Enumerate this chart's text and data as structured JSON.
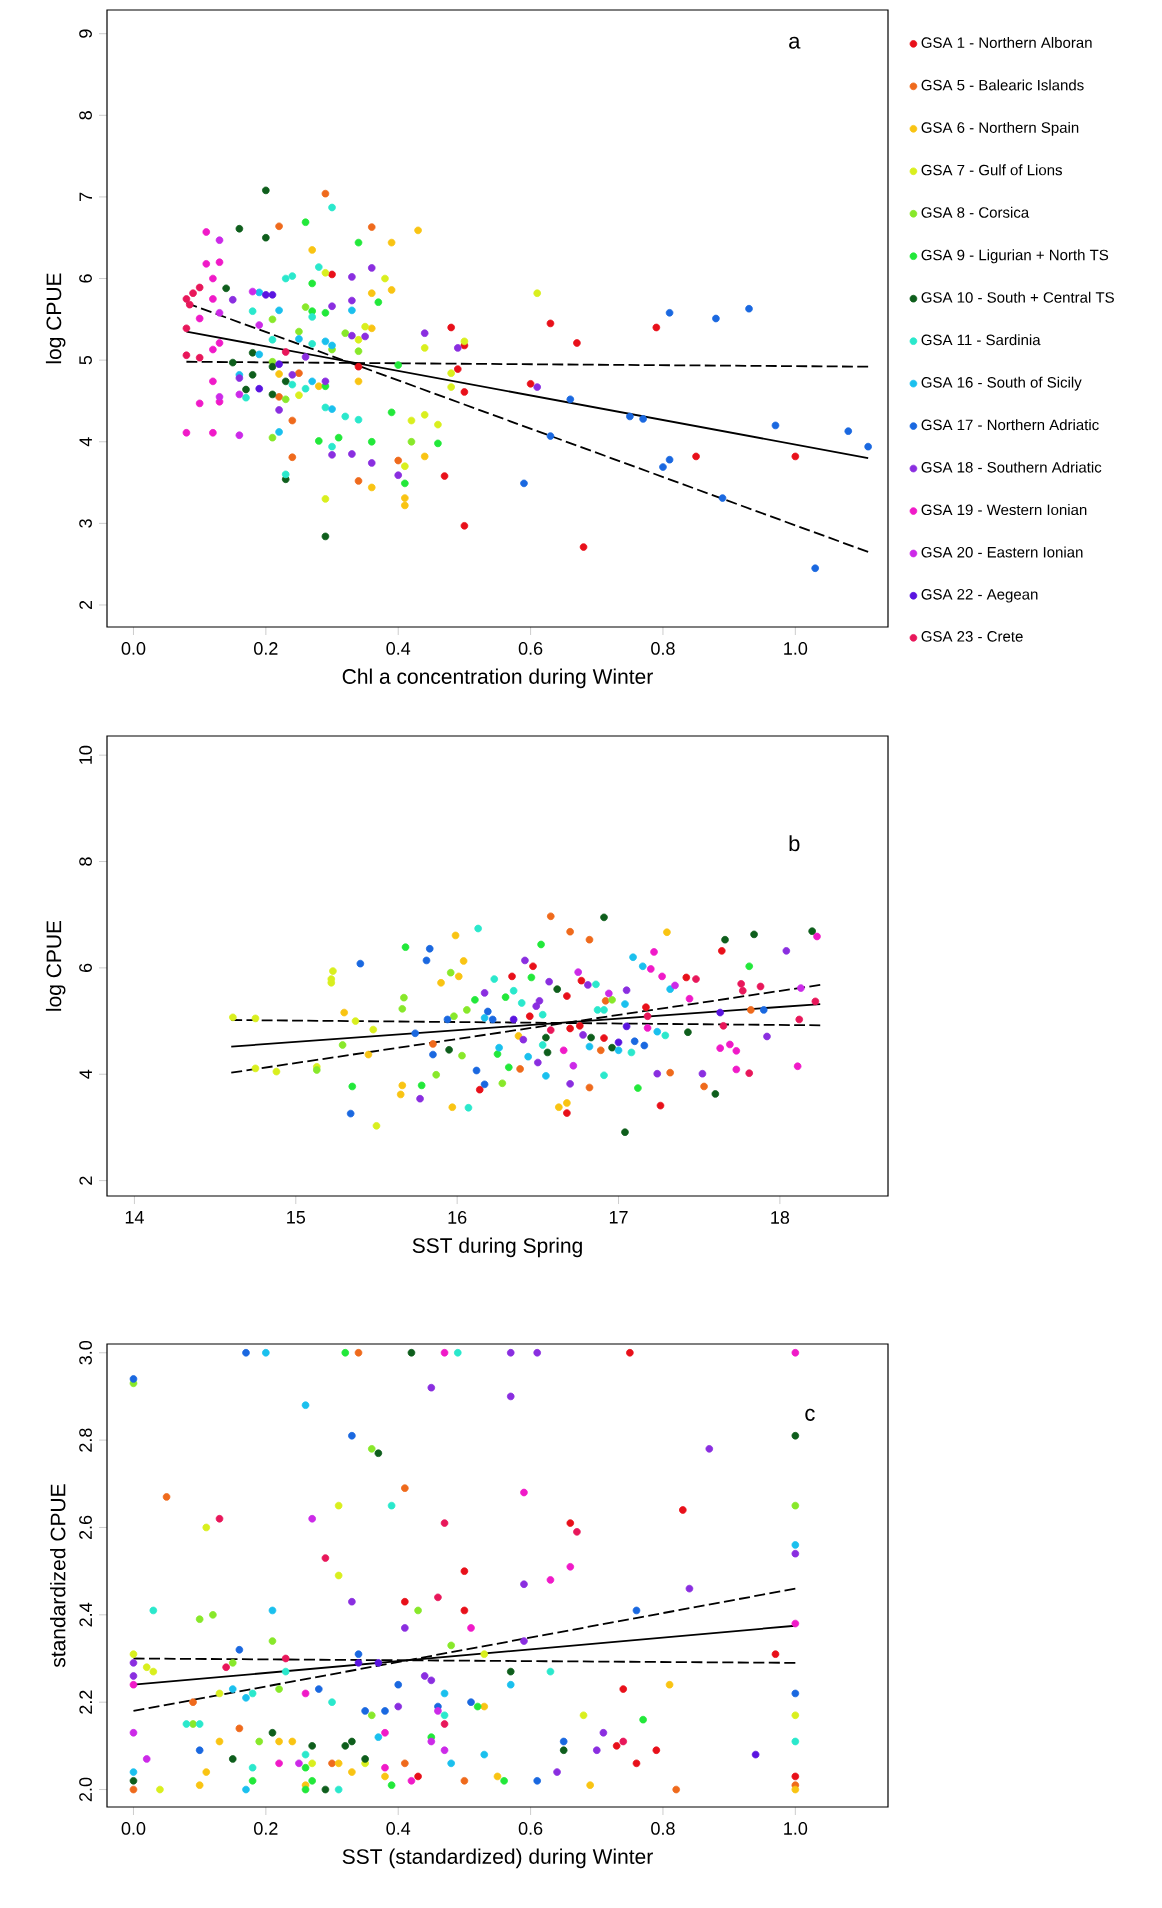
{
  "chart_data": [
    {
      "type": "scatter",
      "xlabel": "Chl a concentration during Winter",
      "ylabel": "log CPUE",
      "annotations": [
        "a"
      ],
      "marker": "circle",
      "legend": "right",
      "xlim": [
        -0.04,
        1.14
      ],
      "ylim": [
        1.73,
        9.29
      ],
      "xticks": [
        {
          "value": 0,
          "label": "0.0"
        },
        {
          "value": 0.2,
          "label": "0.2"
        },
        {
          "value": 0.4,
          "label": "0.4"
        },
        {
          "value": 0.6,
          "label": "0.6"
        },
        {
          "value": 0.8,
          "label": "0.8"
        },
        {
          "value": 1.0,
          "label": "1.0"
        }
      ],
      "yticks": [
        2,
        3,
        4,
        5,
        6,
        7,
        8,
        9
      ],
      "series": [
        {
          "name": "GSA 1 - Northern Alboran",
          "color": "#e8101a",
          "x": [
            0.3,
            0.48,
            0.5,
            0.49,
            0.5,
            0.47,
            0.5,
            0.63,
            0.67,
            0.6,
            0.68,
            0.79,
            0.34,
            0.85,
            1.0
          ],
          "values": [
            6.05,
            5.4,
            5.18,
            4.89,
            4.61,
            3.58,
            2.97,
            5.45,
            5.21,
            4.71,
            2.71,
            5.4,
            4.92,
            3.82,
            3.82
          ]
        },
        {
          "name": "GSA 5 - Balearic Islands",
          "color": "#ef6a1c",
          "x": [
            0.29,
            0.22,
            0.36,
            0.25,
            0.22,
            0.24,
            0.24,
            0.34,
            0.4
          ],
          "values": [
            7.04,
            6.64,
            6.63,
            4.84,
            4.55,
            4.26,
            3.81,
            3.52,
            3.77
          ]
        },
        {
          "name": "GSA 6 - Northern Spain",
          "color": "#f9c413",
          "x": [
            0.27,
            0.39,
            0.43,
            0.36,
            0.39,
            0.36,
            0.22,
            0.28,
            0.34,
            0.44,
            0.36,
            0.41,
            0.41
          ],
          "values": [
            6.35,
            6.44,
            6.59,
            5.82,
            5.86,
            5.39,
            4.83,
            4.68,
            4.74,
            3.82,
            3.44,
            3.31,
            3.22
          ]
        },
        {
          "name": "GSA 7 - Gulf of Lions",
          "color": "#d9ef1e",
          "x": [
            0.29,
            0.38,
            0.35,
            0.34,
            0.44,
            0.5,
            0.61,
            0.48,
            0.48,
            0.25,
            0.42,
            0.44,
            0.46,
            0.41,
            0.29
          ],
          "values": [
            6.07,
            6.0,
            5.41,
            5.25,
            5.15,
            5.23,
            5.82,
            4.84,
            4.67,
            4.57,
            4.26,
            4.33,
            4.21,
            3.7,
            3.3
          ]
        },
        {
          "name": "GSA 8 - Corsica",
          "color": "#88e82a",
          "x": [
            0.26,
            0.21,
            0.25,
            0.32,
            0.34,
            0.21,
            0.23,
            0.21,
            0.3,
            0.42
          ],
          "values": [
            5.65,
            5.5,
            5.35,
            5.33,
            5.11,
            4.98,
            4.52,
            4.05,
            5.13,
            4.0
          ]
        },
        {
          "name": "GSA 9 - Ligurian + North TS",
          "color": "#22e83a",
          "x": [
            0.26,
            0.34,
            0.27,
            0.27,
            0.29,
            0.37,
            0.29,
            0.39,
            0.36,
            0.28,
            0.31,
            0.46,
            0.41,
            0.4
          ],
          "values": [
            6.69,
            6.44,
            5.94,
            5.6,
            5.58,
            5.71,
            4.68,
            4.36,
            4.0,
            4.01,
            4.05,
            3.98,
            3.49,
            4.94
          ]
        },
        {
          "name": "GSA 10 - South + Central TS",
          "color": "#0e5e1c",
          "x": [
            0.2,
            0.16,
            0.2,
            0.14,
            0.18,
            0.15,
            0.18,
            0.17,
            0.21,
            0.21,
            0.23,
            0.23,
            0.29
          ],
          "values": [
            7.08,
            6.61,
            6.5,
            5.88,
            5.09,
            4.97,
            4.82,
            4.64,
            4.58,
            4.92,
            4.74,
            3.54,
            2.84
          ]
        },
        {
          "name": "GSA 11 - Sardinia",
          "color": "#2ae8cc",
          "x": [
            0.3,
            0.23,
            0.24,
            0.28,
            0.27,
            0.18,
            0.21,
            0.27,
            0.24,
            0.26,
            0.17,
            0.29,
            0.32,
            0.34,
            0.23,
            0.3
          ],
          "values": [
            6.87,
            6.0,
            6.03,
            6.14,
            5.53,
            5.6,
            5.25,
            5.2,
            4.7,
            4.65,
            4.54,
            4.42,
            4.31,
            4.27,
            3.6,
            3.94
          ]
        },
        {
          "name": "GSA 16 - South of Sicily",
          "color": "#1ac0ee",
          "x": [
            0.19,
            0.22,
            0.25,
            0.29,
            0.3,
            0.19,
            0.16,
            0.27,
            0.3,
            0.22,
            0.33
          ],
          "values": [
            5.83,
            5.61,
            5.26,
            5.23,
            5.18,
            5.07,
            4.82,
            4.74,
            4.4,
            4.12,
            5.61
          ]
        },
        {
          "name": "GSA 17 - Northern Adriatic",
          "color": "#1a68e0",
          "x": [
            0.81,
            0.88,
            0.93,
            0.66,
            0.75,
            0.77,
            0.63,
            0.81,
            0.8,
            0.89,
            0.97,
            1.08,
            1.11,
            1.03,
            0.59
          ],
          "values": [
            5.58,
            5.51,
            5.63,
            4.52,
            4.31,
            4.28,
            4.07,
            3.78,
            3.69,
            3.31,
            4.2,
            4.13,
            3.94,
            2.45,
            3.49
          ]
        },
        {
          "name": "GSA 18 - Southern Adriatic",
          "color": "#8a2ee0",
          "x": [
            0.33,
            0.36,
            0.33,
            0.3,
            0.33,
            0.35,
            0.44,
            0.49,
            0.61,
            0.26,
            0.24,
            0.29,
            0.22,
            0.3,
            0.33,
            0.36,
            0.4,
            0.15,
            0.16
          ],
          "values": [
            6.02,
            6.13,
            5.73,
            5.66,
            5.3,
            5.29,
            5.33,
            5.15,
            4.67,
            5.04,
            4.82,
            4.74,
            4.39,
            3.84,
            3.85,
            3.74,
            3.59,
            5.74,
            4.78
          ]
        },
        {
          "name": "GSA 19 - Western Ionian",
          "color": "#f01ac8",
          "x": [
            0.11,
            0.11,
            0.13,
            0.12,
            0.12,
            0.1,
            0.13,
            0.12,
            0.12,
            0.1,
            0.13,
            0.12,
            0.08
          ],
          "values": [
            6.57,
            6.18,
            6.2,
            6.0,
            5.75,
            5.51,
            5.21,
            5.13,
            4.74,
            4.47,
            4.49,
            4.11,
            4.11
          ]
        },
        {
          "name": "GSA 20 - Eastern Ionian",
          "color": "#cc2ae8",
          "x": [
            0.13,
            0.13,
            0.13,
            0.16,
            0.16,
            0.18,
            0.19
          ],
          "values": [
            6.47,
            5.58,
            4.55,
            4.58,
            4.08,
            5.84,
            5.43
          ]
        },
        {
          "name": "GSA 22 - Aegean",
          "color": "#5a14e0",
          "x": [
            0.2,
            0.21,
            0.22,
            0.19
          ],
          "values": [
            5.8,
            5.8,
            4.95,
            4.65
          ]
        },
        {
          "name": "GSA 23 - Crete",
          "color": "#e8175a",
          "x": [
            0.08,
            0.09,
            0.1,
            0.08,
            0.08,
            0.1,
            0.085,
            0.23
          ],
          "values": [
            5.75,
            5.82,
            5.89,
            5.39,
            5.06,
            5.03,
            5.68,
            5.1
          ]
        },
        {
          "type": "line",
          "marker": "none",
          "line_style": "solid",
          "color": "#000000",
          "x": [
            0.08,
            1.11
          ],
          "values": [
            5.35,
            3.8
          ]
        },
        {
          "type": "line",
          "marker": "none",
          "line_style": "dashed",
          "color": "#000000",
          "x": [
            0.08,
            1.11
          ],
          "values": [
            5.7,
            2.65
          ]
        },
        {
          "type": "line",
          "marker": "none",
          "line_style": "dashed",
          "color": "#000000",
          "x": [
            0.08,
            1.11
          ],
          "values": [
            4.98,
            4.92
          ]
        }
      ]
    },
    {
      "type": "scatter",
      "xlabel": "SST during Spring",
      "ylabel": "log CPUE",
      "annotations": [
        "b"
      ],
      "marker": "circle",
      "xlim": [
        13.83,
        18.67
      ],
      "ylim": [
        1.71,
        10.36
      ],
      "xticks": [
        14,
        15,
        16,
        17,
        18
      ],
      "yticks": [
        2,
        4,
        6,
        8,
        10
      ],
      "series": [
        {
          "color": "#e8101a",
          "x": [
            16.47,
            16.34,
            16.68,
            16.77,
            16.7,
            16.76,
            16.91,
            16.14,
            16.68,
            17.42,
            17.64,
            17.26,
            17.17,
            16.45
          ],
          "values": [
            6.03,
            5.84,
            5.47,
            5.76,
            4.86,
            4.91,
            4.68,
            3.71,
            3.27,
            5.82,
            6.32,
            3.41,
            5.26,
            5.09
          ]
        },
        {
          "color": "#ef6a1c",
          "x": [
            16.58,
            16.7,
            16.82,
            16.92,
            15.85,
            16.39,
            16.89,
            16.82,
            17.32,
            17.53,
            17.82
          ],
          "values": [
            6.97,
            6.68,
            6.53,
            5.38,
            4.57,
            4.1,
            4.45,
            3.75,
            4.03,
            3.77,
            5.21
          ]
        },
        {
          "color": "#f9c413",
          "x": [
            15.99,
            16.04,
            16.01,
            15.9,
            15.3,
            15.45,
            15.66,
            15.65,
            15.97,
            16.38,
            16.63,
            16.68,
            17.3
          ],
          "values": [
            6.61,
            6.13,
            5.84,
            5.72,
            5.16,
            4.37,
            3.79,
            3.62,
            3.38,
            4.72,
            3.38,
            3.46,
            6.67
          ]
        },
        {
          "color": "#d9ef1e",
          "x": [
            15.23,
            15.22,
            15.22,
            14.61,
            14.75,
            15.37,
            15.48,
            14.75,
            14.88,
            15.13,
            15.5
          ],
          "values": [
            5.94,
            5.79,
            5.72,
            5.07,
            5.05,
            5.0,
            4.84,
            4.11,
            4.05,
            4.14,
            3.03
          ]
        },
        {
          "color": "#88e82a",
          "x": [
            15.96,
            15.67,
            15.98,
            16.06,
            15.66,
            15.29,
            15.13,
            15.87,
            16.03,
            16.28,
            16.96
          ],
          "values": [
            5.91,
            5.44,
            5.09,
            5.21,
            5.23,
            4.55,
            4.08,
            3.99,
            4.35,
            3.83,
            5.4
          ]
        },
        {
          "color": "#22e83a",
          "x": [
            15.68,
            16.52,
            16.46,
            16.3,
            16.11,
            15.35,
            15.78,
            16.25,
            16.32,
            17.12,
            17.81
          ],
          "values": [
            6.39,
            6.44,
            5.82,
            5.45,
            5.4,
            3.77,
            3.79,
            4.38,
            4.13,
            3.74,
            6.03
          ]
        },
        {
          "color": "#0e5e1c",
          "x": [
            16.91,
            16.62,
            16.55,
            16.56,
            16.83,
            16.96,
            17.04,
            17.43,
            17.6,
            17.66,
            17.84,
            18.2,
            15.95
          ],
          "values": [
            6.95,
            5.6,
            4.69,
            4.41,
            4.69,
            4.5,
            2.91,
            4.79,
            3.63,
            6.53,
            6.63,
            6.69,
            4.46
          ]
        },
        {
          "color": "#2ae8cc",
          "x": [
            16.13,
            16.23,
            16.35,
            16.4,
            16.53,
            16.86,
            16.87,
            16.91,
            16.53,
            16.91,
            16.07,
            17.08,
            17.29
          ],
          "values": [
            6.74,
            5.79,
            5.57,
            5.34,
            5.12,
            5.69,
            5.21,
            5.21,
            4.55,
            3.98,
            3.37,
            4.41,
            4.73
          ]
        },
        {
          "color": "#1ac0ee",
          "x": [
            17.09,
            17.15,
            17.04,
            17.32,
            16.82,
            16.44,
            16.55,
            17.24,
            17.0,
            16.26,
            16.17
          ],
          "values": [
            6.2,
            6.03,
            5.32,
            5.6,
            4.52,
            4.33,
            3.97,
            4.8,
            4.45,
            4.5,
            5.06
          ]
        },
        {
          "color": "#1a68e0",
          "x": [
            15.4,
            15.83,
            15.81,
            15.94,
            16.19,
            16.22,
            15.74,
            15.85,
            16.12,
            16.17,
            15.34,
            17.1,
            17.16,
            17.9
          ],
          "values": [
            6.08,
            6.36,
            6.14,
            5.03,
            5.18,
            5.03,
            4.77,
            4.37,
            4.07,
            3.81,
            3.26,
            4.62,
            4.54,
            5.21
          ]
        },
        {
          "color": "#8a2ee0",
          "x": [
            16.42,
            16.17,
            16.57,
            16.49,
            16.51,
            16.41,
            16.5,
            16.7,
            16.78,
            16.81,
            17.05,
            17.24,
            17.52,
            18.04,
            17.92,
            15.77
          ],
          "values": [
            6.14,
            5.53,
            5.74,
            5.28,
            5.38,
            4.65,
            4.22,
            3.82,
            4.74,
            5.68,
            5.58,
            4.01,
            4.01,
            6.32,
            4.71,
            3.54
          ]
        },
        {
          "color": "#f01ac8",
          "x": [
            17.22,
            17.2,
            17.27,
            17.44,
            17.63,
            17.69,
            17.73,
            17.73,
            18.23,
            18.11,
            16.66,
            17.18
          ],
          "values": [
            6.3,
            5.98,
            5.84,
            5.42,
            4.49,
            4.56,
            4.44,
            4.09,
            6.59,
            4.15,
            4.45,
            4.87
          ]
        },
        {
          "color": "#cc2ae8",
          "x": [
            16.75,
            16.72,
            17.35,
            18.13,
            16.94
          ],
          "values": [
            5.92,
            4.16,
            5.67,
            5.62,
            5.52
          ]
        },
        {
          "color": "#5a14e0",
          "x": [
            17.0,
            17.05,
            16.35,
            17.63
          ],
          "values": [
            4.6,
            4.9,
            5.03,
            5.16
          ]
        },
        {
          "color": "#e8175a",
          "x": [
            17.48,
            17.76,
            17.77,
            17.88,
            18.12,
            17.65,
            17.81,
            18.22,
            17.18,
            16.58
          ],
          "values": [
            5.79,
            5.7,
            5.57,
            5.65,
            5.03,
            4.91,
            4.02,
            5.37,
            5.09,
            4.83
          ]
        },
        {
          "type": "line",
          "marker": "none",
          "line_style": "solid",
          "color": "#000000",
          "x": [
            14.6,
            18.25
          ],
          "values": [
            4.52,
            5.32
          ]
        },
        {
          "type": "line",
          "marker": "none",
          "line_style": "dashed",
          "color": "#000000",
          "x": [
            14.6,
            18.25
          ],
          "values": [
            4.03,
            5.68
          ]
        },
        {
          "type": "line",
          "marker": "none",
          "line_style": "dashed",
          "color": "#000000",
          "x": [
            14.6,
            18.25
          ],
          "values": [
            5.02,
            4.92
          ]
        }
      ]
    },
    {
      "type": "scatter",
      "xlabel": "SST (standardized) during Winter",
      "ylabel": "standardized CPUE",
      "annotations": [
        "c"
      ],
      "marker": "circle",
      "xlim": [
        -0.04,
        1.14
      ],
      "ylim": [
        1.96,
        3.02
      ],
      "xticks": [
        {
          "value": 0,
          "label": "0.0"
        },
        {
          "value": 0.2,
          "label": "0.2"
        },
        {
          "value": 0.4,
          "label": "0.4"
        },
        {
          "value": 0.6,
          "label": "0.6"
        },
        {
          "value": 0.8,
          "label": "0.8"
        },
        {
          "value": 1.0,
          "label": "1.0"
        }
      ],
      "yticks": [
        {
          "value": 2.0,
          "label": "2.0"
        },
        {
          "value": 2.2,
          "label": "2.2"
        },
        {
          "value": 2.4,
          "label": "2.4"
        },
        {
          "value": 2.6,
          "label": "2.6"
        },
        {
          "value": 2.8,
          "label": "2.8"
        },
        {
          "value": 3.0,
          "label": "3.0"
        }
      ],
      "series": [
        {
          "color": "#e8101a",
          "x": [
            0.75,
            0.83,
            0.66,
            0.5,
            0.41,
            0.5,
            0.97,
            0.74,
            0.79,
            0.73,
            0.76,
            0.43,
            1.0
          ],
          "values": [
            3.0,
            2.64,
            2.61,
            2.5,
            2.43,
            2.41,
            2.31,
            2.23,
            2.09,
            2.1,
            2.06,
            2.03,
            2.03
          ]
        },
        {
          "color": "#ef6a1c",
          "x": [
            0.34,
            0.05,
            0.41,
            0.09,
            0.16,
            0.3,
            0.5,
            0.82,
            0.0,
            1.0,
            0.41
          ],
          "values": [
            3.0,
            2.67,
            2.69,
            2.2,
            2.14,
            2.06,
            2.02,
            2.0,
            2.0,
            2.01,
            2.06
          ]
        },
        {
          "color": "#f9c413",
          "x": [
            0.13,
            0.1,
            0.22,
            0.24,
            0.31,
            0.33,
            0.38,
            0.53,
            0.81,
            0.69,
            0.55,
            1.0,
            0.11,
            0.26
          ],
          "values": [
            2.11,
            2.01,
            2.11,
            2.11,
            2.06,
            2.04,
            2.03,
            2.19,
            2.24,
            2.01,
            2.03,
            2.0,
            2.04,
            2.01
          ]
        },
        {
          "color": "#d9ef1e",
          "x": [
            0.11,
            0.31,
            0.31,
            0.0,
            0.02,
            0.03,
            0.13,
            0.04,
            0.53,
            0.68,
            1.0,
            0.35,
            0.27
          ],
          "values": [
            2.6,
            2.65,
            2.49,
            2.31,
            2.28,
            2.27,
            2.22,
            2.0,
            2.31,
            2.17,
            2.17,
            2.06,
            2.06
          ]
        },
        {
          "color": "#88e82a",
          "x": [
            0.0,
            0.36,
            0.1,
            0.12,
            0.21,
            0.43,
            0.22,
            0.15,
            0.09,
            0.19,
            0.36,
            0.48,
            1.0
          ],
          "values": [
            2.93,
            2.78,
            2.39,
            2.4,
            2.34,
            2.41,
            2.23,
            2.29,
            2.15,
            2.11,
            2.17,
            2.33,
            2.65
          ]
        },
        {
          "color": "#22e83a",
          "x": [
            0.32,
            0.52,
            0.45,
            0.77,
            0.56,
            0.39,
            0.26,
            0.27,
            0.18,
            0.26
          ],
          "values": [
            3.0,
            2.19,
            2.12,
            2.16,
            2.02,
            2.01,
            2.0,
            2.02,
            2.02,
            2.05
          ]
        },
        {
          "color": "#0e5e1c",
          "x": [
            0.42,
            0.37,
            0.0,
            0.15,
            0.21,
            0.27,
            0.32,
            0.33,
            0.29,
            0.35,
            0.57,
            0.65,
            1.0
          ],
          "values": [
            3.0,
            2.77,
            2.02,
            2.07,
            2.13,
            2.1,
            2.1,
            2.11,
            2.0,
            2.07,
            2.27,
            2.09,
            2.81
          ]
        },
        {
          "color": "#2ae8cc",
          "x": [
            0.49,
            0.03,
            0.39,
            0.23,
            0.3,
            0.18,
            0.08,
            0.1,
            0.18,
            0.31,
            0.47,
            0.63,
            1.0,
            0.26
          ],
          "values": [
            3.0,
            2.41,
            2.65,
            2.27,
            2.2,
            2.22,
            2.15,
            2.15,
            2.05,
            2.0,
            2.17,
            2.27,
            2.11,
            2.08
          ]
        },
        {
          "color": "#1ac0ee",
          "x": [
            0.2,
            0.26,
            0.21,
            0.15,
            0.17,
            0.17,
            0.0,
            0.37,
            0.47,
            0.48,
            0.53,
            0.57,
            1.0
          ],
          "values": [
            3.0,
            2.88,
            2.41,
            2.23,
            2.21,
            2.0,
            2.04,
            2.12,
            2.22,
            2.06,
            2.08,
            2.24,
            2.56
          ]
        },
        {
          "color": "#1a68e0",
          "x": [
            0.17,
            0.0,
            0.33,
            0.16,
            0.28,
            0.34,
            0.4,
            0.35,
            0.38,
            0.46,
            0.51,
            0.65,
            0.61,
            0.76,
            1.0,
            0.1
          ],
          "values": [
            3.0,
            2.94,
            2.81,
            2.32,
            2.23,
            2.31,
            2.24,
            2.18,
            2.18,
            2.19,
            2.2,
            2.11,
            2.02,
            2.41,
            2.22,
            2.09
          ]
        },
        {
          "color": "#8a2ee0",
          "x": [
            0.57,
            0.61,
            0.45,
            0.57,
            0.87,
            0.33,
            0.41,
            0.59,
            0.84,
            0.59,
            0.4,
            0.44,
            0.45,
            1.0,
            0.71,
            0.7,
            0.64,
            0.0,
            0.0
          ],
          "values": [
            3.0,
            3.0,
            2.92,
            2.9,
            2.78,
            2.43,
            2.37,
            2.47,
            2.46,
            2.34,
            2.19,
            2.26,
            2.25,
            2.54,
            2.13,
            2.09,
            2.04,
            2.26,
            2.29
          ]
        },
        {
          "color": "#f01ac8",
          "x": [
            0.47,
            1.0,
            0.59,
            0.63,
            0.66,
            0.51,
            0.26,
            0.22,
            0.38,
            0.38,
            0.42,
            1.0,
            0.0
          ],
          "values": [
            3.0,
            3.0,
            2.68,
            2.48,
            2.51,
            2.37,
            2.22,
            2.06,
            2.13,
            2.05,
            2.02,
            2.38,
            2.24
          ]
        },
        {
          "color": "#cc2ae8",
          "x": [
            0.27,
            0.02,
            0.0,
            0.46,
            0.47,
            0.25,
            0.45
          ],
          "values": [
            2.62,
            2.07,
            2.13,
            2.18,
            2.09,
            2.06,
            2.11
          ]
        },
        {
          "color": "#5a14e0",
          "x": [
            0.34,
            0.37,
            0.94
          ],
          "values": [
            2.29,
            2.29,
            2.08
          ]
        },
        {
          "color": "#e8175a",
          "x": [
            0.13,
            0.29,
            0.46,
            0.47,
            0.67,
            0.14,
            0.23,
            0.47,
            0.74
          ],
          "values": [
            2.62,
            2.53,
            2.44,
            2.61,
            2.59,
            2.28,
            2.3,
            2.15,
            2.11
          ]
        },
        {
          "type": "line",
          "marker": "none",
          "line_style": "solid",
          "color": "#000000",
          "x": [
            0.0,
            1.0
          ],
          "values": [
            2.24,
            2.375
          ]
        },
        {
          "type": "line",
          "marker": "none",
          "line_style": "dashed",
          "color": "#000000",
          "x": [
            0.0,
            1.0
          ],
          "values": [
            2.18,
            2.46
          ]
        },
        {
          "type": "line",
          "marker": "none",
          "line_style": "dashed",
          "color": "#000000",
          "x": [
            0.0,
            1.0
          ],
          "values": [
            2.3,
            2.29
          ]
        }
      ]
    }
  ]
}
